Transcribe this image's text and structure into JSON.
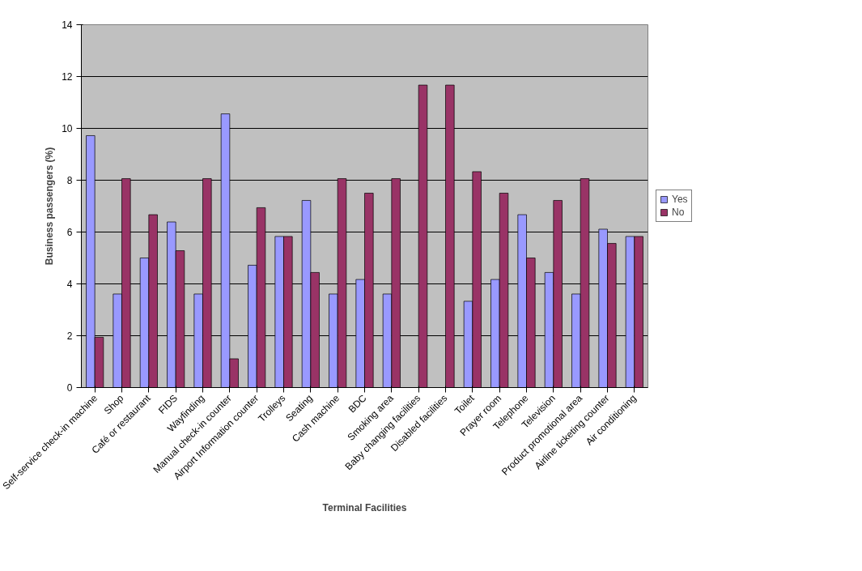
{
  "chart_data": {
    "type": "bar",
    "xlabel": "Terminal Facilities",
    "ylabel": "Business passengers (%)",
    "categories": [
      "Self-service check-in machine",
      "Shop",
      "Café or restaurant",
      "FIDS",
      "Wayfinding",
      "Manual check-in counter",
      "Airport Information counter",
      "Trolleys",
      "Seating",
      "Cash machine",
      "BDC",
      "Smoking area",
      "Baby changing facilities",
      "Disabled facilities",
      "Toilet",
      "Prayer room",
      "Telephone",
      "Television",
      "Product promotional area",
      "Airline ticketing counter",
      "Air conditioning"
    ],
    "series": [
      {
        "name": "Yes",
        "color": "#9999ff",
        "values": [
          9.72,
          3.61,
          5.0,
          6.39,
          3.61,
          10.56,
          4.72,
          5.83,
          7.22,
          3.61,
          4.17,
          3.61,
          null,
          null,
          3.33,
          4.17,
          6.67,
          4.44,
          3.61,
          6.11,
          5.83
        ]
      },
      {
        "name": "No",
        "color": "#993366",
        "values": [
          1.94,
          8.06,
          6.67,
          5.28,
          8.06,
          1.11,
          6.94,
          5.83,
          4.44,
          8.06,
          7.5,
          8.06,
          11.67,
          11.67,
          8.33,
          7.5,
          5.0,
          7.22,
          8.06,
          5.56,
          5.83
        ]
      }
    ],
    "ylim": [
      0,
      14
    ],
    "yticks": [
      0,
      2,
      4,
      6,
      8,
      10,
      12,
      14
    ],
    "grid": "y",
    "legend": "right"
  }
}
